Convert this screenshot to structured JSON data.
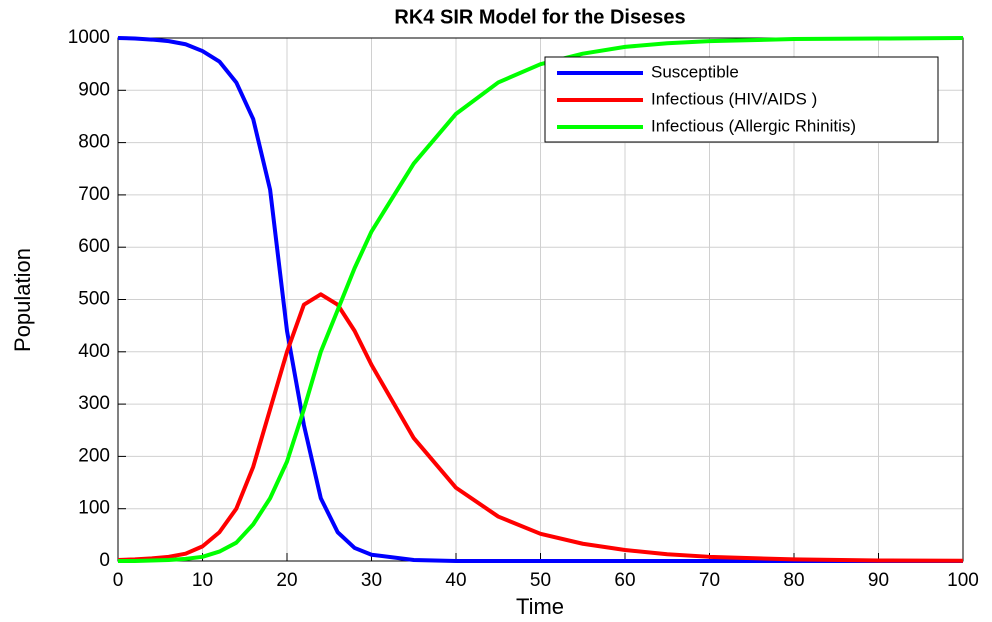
{
  "chart_data": {
    "type": "line",
    "title": "RK4 SIR Model for the Diseses",
    "x_label": "Time",
    "y_label": "Population",
    "x": [
      0,
      2,
      4,
      6,
      8,
      10,
      12,
      14,
      16,
      18,
      20,
      22,
      24,
      26,
      28,
      30,
      35,
      40,
      45,
      50,
      55,
      60,
      65,
      70,
      80,
      90,
      100
    ],
    "series": [
      {
        "name": "Susceptible",
        "color": "#0000ff",
        "values": [
          1000,
          999,
          997,
          994,
          988,
          975,
          955,
          915,
          845,
          710,
          440,
          260,
          120,
          55,
          25,
          12,
          2,
          0,
          0,
          0,
          0,
          0,
          0,
          0,
          0,
          0,
          0
        ]
      },
      {
        "name": "Infectious (HIV/AIDS )",
        "color": "#ff0000",
        "values": [
          2,
          3,
          5,
          8,
          14,
          28,
          55,
          100,
          180,
          290,
          400,
          490,
          510,
          490,
          440,
          375,
          235,
          140,
          85,
          52,
          33,
          21,
          13,
          8,
          3,
          1,
          0.5
        ]
      },
      {
        "name": "Infectious (Allergic Rhinitis)",
        "color": "#00ff00",
        "values": [
          0,
          0,
          1,
          2,
          4,
          8,
          18,
          35,
          70,
          120,
          190,
          290,
          400,
          480,
          560,
          630,
          760,
          855,
          915,
          950,
          970,
          983,
          990,
          994,
          998,
          999,
          1000
        ]
      }
    ],
    "xlim": [
      0,
      100
    ],
    "xticks": [
      0,
      10,
      20,
      30,
      40,
      50,
      60,
      70,
      80,
      90,
      100
    ],
    "ylim": [
      0,
      1000
    ],
    "yticks": [
      0,
      100,
      200,
      300,
      400,
      500,
      600,
      700,
      800,
      900,
      1000
    ],
    "grid": true,
    "legend": "upper right"
  }
}
